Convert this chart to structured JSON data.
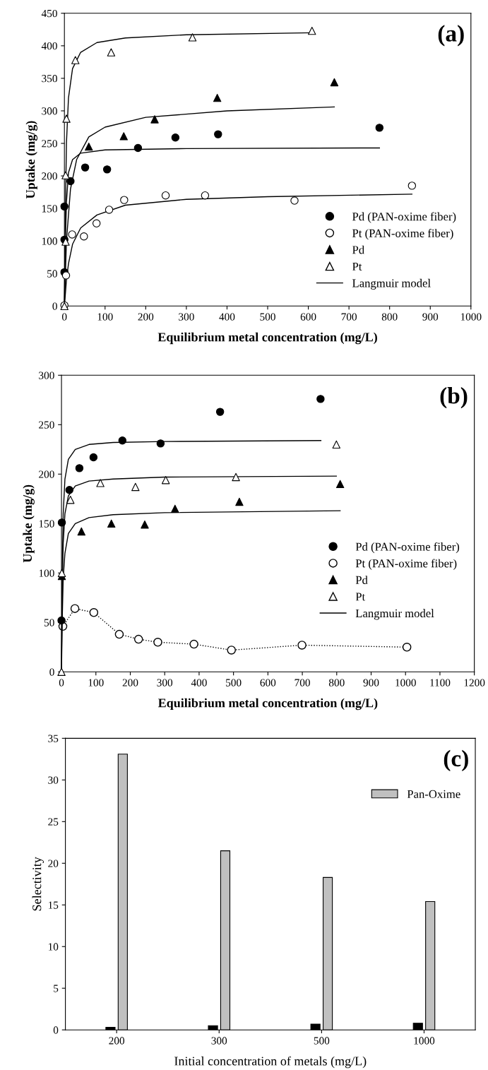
{
  "chart_data": [
    {
      "type": "scatter",
      "xlabel": "Equilibrium metal concentration (mg/L)",
      "ylabel": "Uptake (mg/g)",
      "xlim": [
        0,
        1000
      ],
      "ylim": [
        0,
        450
      ],
      "xticks": [
        0,
        100,
        200,
        300,
        400,
        500,
        600,
        700,
        800,
        900,
        1000
      ],
      "yticks": [
        0,
        50,
        100,
        150,
        200,
        250,
        300,
        350,
        400,
        450
      ],
      "legend": "bottom right",
      "annotations": [
        "(a)"
      ],
      "series": [
        {
          "name": "Pd (PAN-oxime fiber)",
          "type": "scatter",
          "marker": "circle",
          "color": "#000000",
          "x": [
            0,
            0,
            0,
            15,
            51,
            105,
            181,
            273,
            378,
            775
          ],
          "values": [
            52,
            102,
            153,
            192,
            213,
            210,
            243,
            259,
            264,
            274
          ]
        },
        {
          "name": "Pt (PAN-oxime fiber)",
          "type": "scatter",
          "marker": "circle",
          "color": "#ffffff",
          "x": [
            0,
            4,
            19,
            48,
            79,
            110,
            147,
            249,
            346,
            566,
            855
          ],
          "values": [
            1,
            47,
            110,
            107,
            127,
            148,
            163,
            170,
            170,
            162,
            185
          ]
        },
        {
          "name": "Pd",
          "type": "scatter",
          "marker": "triangle",
          "color": "#000000",
          "x": [
            60,
            146,
            222,
            376,
            664
          ],
          "values": [
            245,
            261,
            287,
            320,
            344
          ]
        },
        {
          "name": "Pt",
          "type": "scatter",
          "marker": "triangle",
          "color": "#ffffff",
          "x": [
            0,
            3,
            3,
            5,
            27,
            115,
            315,
            609
          ],
          "values": [
            0,
            99,
            201,
            288,
            378,
            390,
            413,
            423
          ]
        },
        {
          "name": "Langmuir model",
          "type": "line",
          "line_style": "solid",
          "color": "#000000",
          "x": [
            0,
            2,
            5,
            10,
            20,
            40,
            80,
            150,
            300,
            609
          ],
          "values": [
            0,
            130,
            250,
            320,
            365,
            390,
            405,
            412,
            417,
            420
          ]
        },
        {
          "type": "line",
          "line_style": "solid",
          "color": "#000000",
          "x": [
            0,
            5,
            15,
            30,
            60,
            100,
            200,
            400,
            664
          ],
          "values": [
            0,
            100,
            180,
            225,
            260,
            275,
            290,
            300,
            306
          ]
        },
        {
          "type": "line",
          "line_style": "solid",
          "color": "#000000",
          "x": [
            0,
            2,
            5,
            10,
            20,
            40,
            100,
            300,
            775
          ],
          "values": [
            0,
            90,
            160,
            205,
            225,
            235,
            240,
            242,
            243
          ]
        },
        {
          "type": "line",
          "line_style": "solid",
          "color": "#000000",
          "x": [
            0,
            5,
            10,
            20,
            40,
            80,
            150,
            300,
            500,
            855
          ],
          "values": [
            0,
            40,
            65,
            95,
            120,
            140,
            155,
            164,
            168,
            172
          ]
        }
      ]
    },
    {
      "type": "scatter",
      "xlabel": "Equilibrium metal concentration (mg/L)",
      "ylabel": "Uptake (mg/g)",
      "xlim": [
        0,
        1200
      ],
      "ylim": [
        0,
        300
      ],
      "xticks": [
        0,
        100,
        200,
        300,
        400,
        500,
        600,
        700,
        800,
        900,
        1000,
        1100,
        1200
      ],
      "yticks": [
        0,
        50,
        100,
        150,
        200,
        250,
        300
      ],
      "legend": "bottom right",
      "annotations": [
        "(b)"
      ],
      "series": [
        {
          "name": "Pd (PAN-oxime fiber)",
          "type": "scatter",
          "marker": "circle",
          "color": "#000000",
          "x": [
            0,
            1,
            23,
            52,
            93,
            177,
            288,
            461,
            753
          ],
          "values": [
            52,
            151,
            184,
            206,
            217,
            234,
            231,
            263,
            276
          ]
        },
        {
          "name": "Pt (PAN-oxime fiber)",
          "type": "line",
          "marker": "circle",
          "line_style": "dotted",
          "color": "#ffffff",
          "x": [
            4,
            39,
            94,
            168,
            224,
            280,
            385,
            494,
            699,
            1004
          ],
          "values": [
            46,
            64,
            60,
            38,
            33,
            30,
            28,
            22,
            27,
            25
          ]
        },
        {
          "name": "Pd",
          "type": "scatter",
          "marker": "triangle",
          "color": "#000000",
          "x": [
            1,
            58,
            145,
            242,
            330,
            517,
            810
          ],
          "values": [
            97,
            142,
            150,
            149,
            165,
            172,
            190
          ]
        },
        {
          "name": "Pt",
          "type": "scatter",
          "marker": "triangle",
          "color": "#ffffff",
          "x": [
            0,
            1,
            26,
            113,
            215,
            303,
            507,
            799
          ],
          "values": [
            0,
            100,
            174,
            191,
            187,
            194,
            197,
            230
          ]
        },
        {
          "name": "Langmuir model",
          "type": "line",
          "line_style": "solid",
          "color": "#000000",
          "x": [
            0,
            2,
            5,
            10,
            20,
            40,
            80,
            150,
            300,
            754
          ],
          "values": [
            0,
            100,
            160,
            195,
            215,
            225,
            230,
            232,
            233,
            234
          ]
        },
        {
          "type": "line",
          "line_style": "solid",
          "color": "#000000",
          "x": [
            0,
            2,
            5,
            10,
            20,
            40,
            80,
            150,
            300,
            799
          ],
          "values": [
            0,
            80,
            130,
            160,
            178,
            188,
            193,
            195,
            197,
            198
          ]
        },
        {
          "type": "line",
          "line_style": "solid",
          "color": "#000000",
          "x": [
            0,
            2,
            5,
            10,
            20,
            40,
            80,
            150,
            300,
            810
          ],
          "values": [
            0,
            50,
            95,
            120,
            140,
            150,
            156,
            159,
            161,
            163
          ]
        }
      ]
    },
    {
      "type": "bar",
      "xlabel": "Initial concentration of metals (mg/L)",
      "ylabel": "Selectivity",
      "categories": [
        "200",
        "300",
        "500",
        "1000"
      ],
      "ylim": [
        0,
        35
      ],
      "yticks": [
        0,
        5,
        10,
        15,
        20,
        25,
        30,
        35
      ],
      "legend": "top right",
      "annotations": [
        "(c)"
      ],
      "series": [
        {
          "color": "#000000",
          "values": [
            0.3,
            0.5,
            0.7,
            0.8
          ]
        },
        {
          "name": "Pan-Oxime",
          "color": "#c0c0c0",
          "values": [
            33.1,
            21.5,
            18.3,
            15.4
          ]
        }
      ]
    }
  ]
}
